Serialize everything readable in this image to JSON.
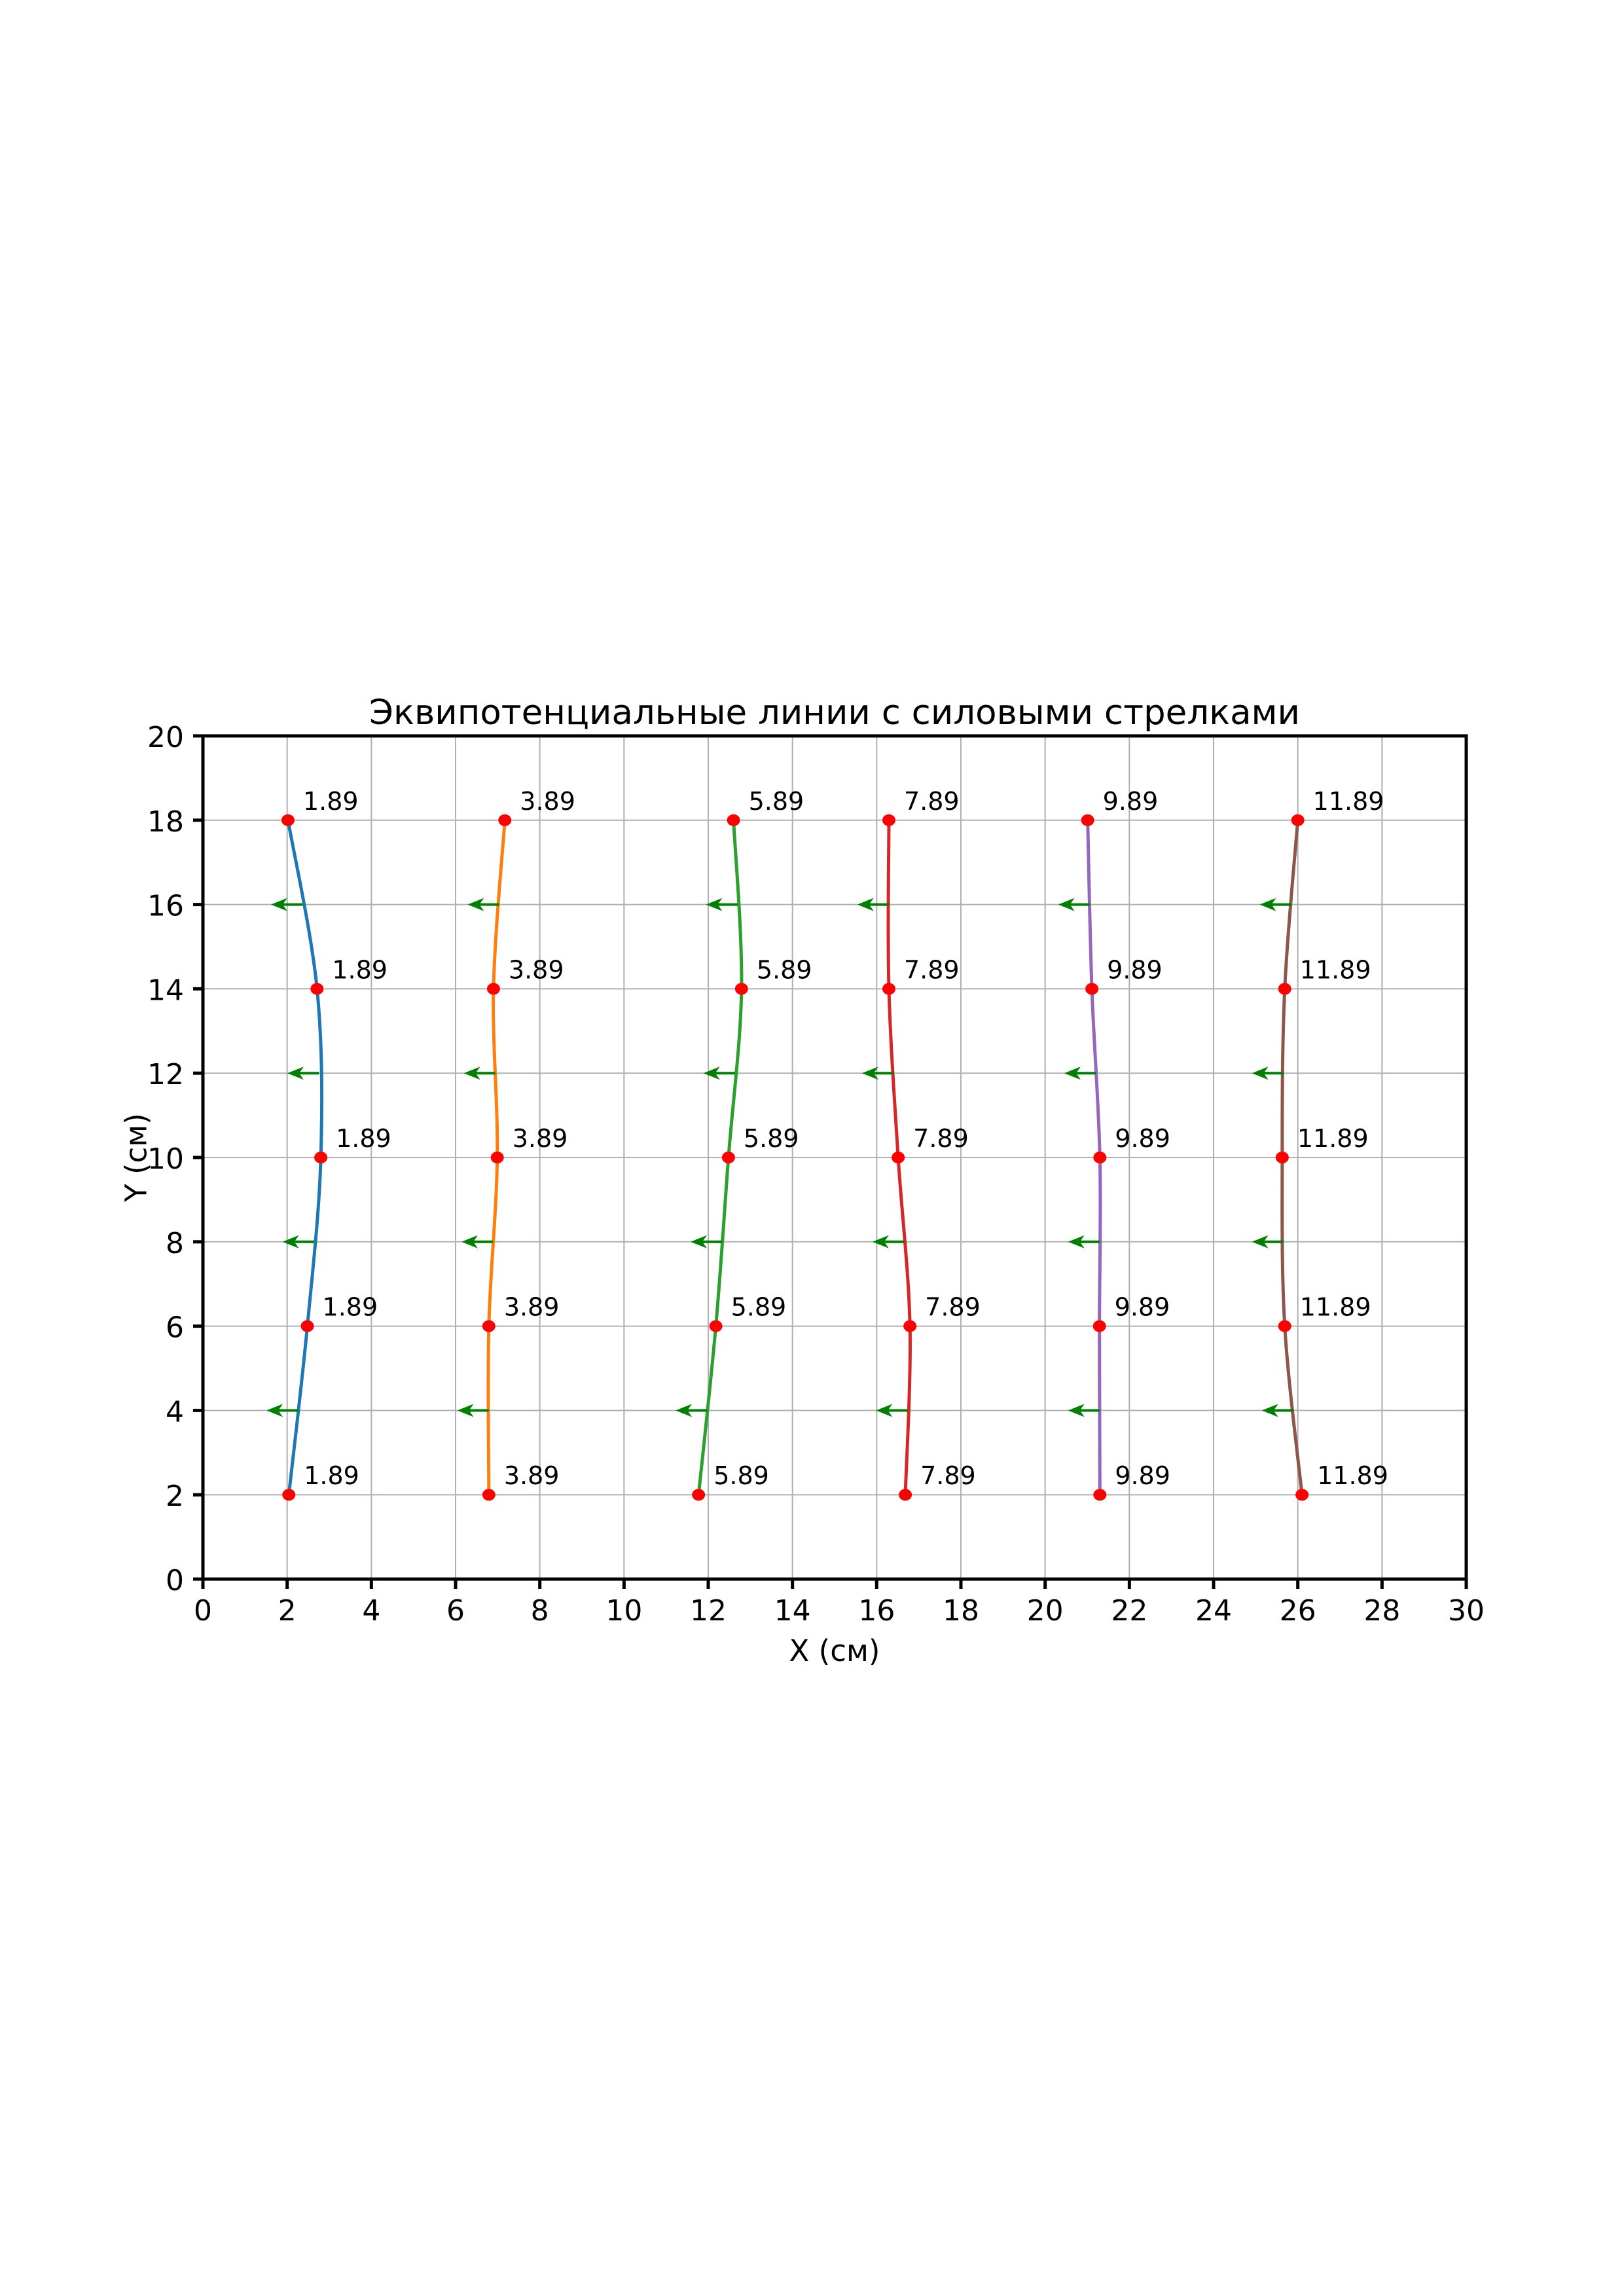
{
  "chart_data": {
    "type": "line",
    "title": "Эквипотенциальные линии с силовыми стрелками",
    "xlabel": "X (см)",
    "ylabel": "Y (см)",
    "xlim": [
      0,
      30
    ],
    "ylim": [
      0,
      20
    ],
    "x_ticks": [
      0,
      2,
      4,
      6,
      8,
      10,
      12,
      14,
      16,
      18,
      20,
      22,
      24,
      26,
      28,
      30
    ],
    "y_ticks": [
      0,
      2,
      4,
      6,
      8,
      10,
      12,
      14,
      16,
      18,
      20
    ],
    "grid": true,
    "grid_color": "#b0b0b0",
    "background_color": "#ffffff",
    "marker_color": "#ff0000",
    "points_y": [
      2,
      6,
      10,
      14,
      18
    ],
    "series": [
      {
        "name": "equipotential-1.89",
        "label": "1.89",
        "color": "#1f77b4",
        "x": [
          2.04,
          2.48,
          2.8,
          2.71,
          2.02
        ]
      },
      {
        "name": "equipotential-3.89",
        "label": "3.89",
        "color": "#ff7f0e",
        "x": [
          6.79,
          6.79,
          6.99,
          6.9,
          7.17
        ]
      },
      {
        "name": "equipotential-5.89",
        "label": "5.89",
        "color": "#2ca02c",
        "x": [
          11.77,
          12.18,
          12.48,
          12.79,
          12.6
        ]
      },
      {
        "name": "equipotential-7.89",
        "label": "7.89",
        "color": "#d62728",
        "x": [
          16.68,
          16.79,
          16.51,
          16.29,
          16.29
        ]
      },
      {
        "name": "equipotential-9.89",
        "label": "9.89",
        "color": "#9467bd",
        "x": [
          21.3,
          21.29,
          21.3,
          21.11,
          21.01
        ]
      },
      {
        "name": "equipotential-11.89",
        "label": "11.89",
        "color": "#8c564b",
        "x": [
          26.1,
          25.69,
          25.63,
          25.69,
          26.0
        ]
      }
    ],
    "force_arrows": {
      "color": "#008000",
      "y_positions": [
        4,
        8,
        12,
        16
      ],
      "direction": "-x",
      "length_units": 0.75,
      "anchor": "midpoint of adjacent equipotential points"
    }
  }
}
